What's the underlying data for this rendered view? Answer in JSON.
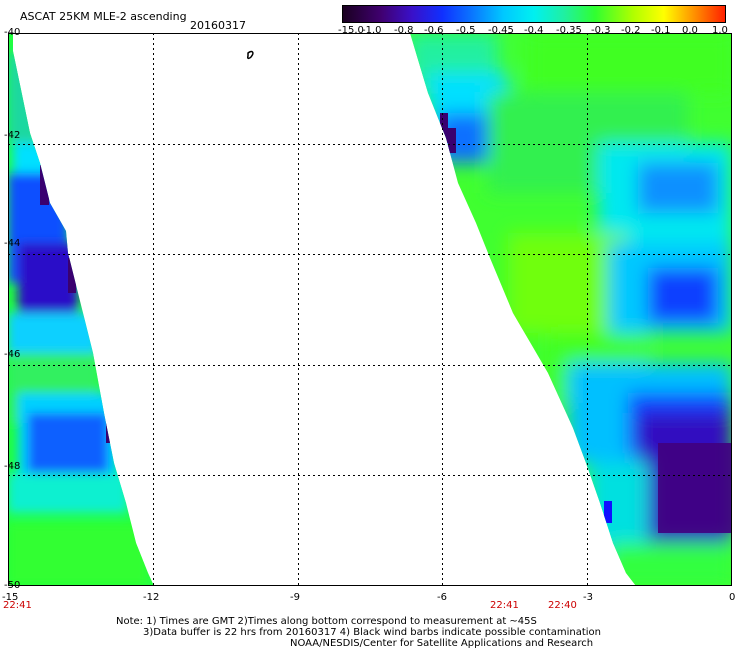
{
  "header": {
    "title": "ASCAT 25KM MLE-2 ascending",
    "date": "20160317"
  },
  "colorbar": {
    "labels": [
      "-15.0",
      "-1.0",
      "-0.8",
      "-0.6",
      "-0.5",
      "-0.45",
      "-0.4",
      "-0.35",
      "-0.3",
      "-0.2",
      "-0.1",
      "0.0",
      "1.0"
    ],
    "colors": [
      "#2a0a3a",
      "#4a0090",
      "#3a10c8",
      "#1030ff",
      "#0a78ff",
      "#00b8ff",
      "#00f0f0",
      "#20f0a0",
      "#30ff30",
      "#90ff00",
      "#ffff00",
      "#ff9000",
      "#ff2a00"
    ]
  },
  "map": {
    "lon_labels": [
      "-15",
      "-12",
      "-9",
      "-6",
      "-3",
      "0"
    ],
    "lat_labels": [
      "-40",
      "-42",
      "-44",
      "-46",
      "-48",
      "-50"
    ],
    "time_labels_left": [
      "22:41"
    ],
    "time_labels_right": [
      "22:41",
      "22:40"
    ],
    "zero_mark": "0"
  },
  "footer": {
    "note_line1": "Note: 1) Times are GMT 2)Times along bottom correspond to measurement at ~45S",
    "note_line2": "3)Data buffer is 22 hrs from 20160317 4) Black wind barbs indicate possible contamination",
    "credit": "NOAA/NESDIS/Center for Satellite Applications and Research"
  }
}
